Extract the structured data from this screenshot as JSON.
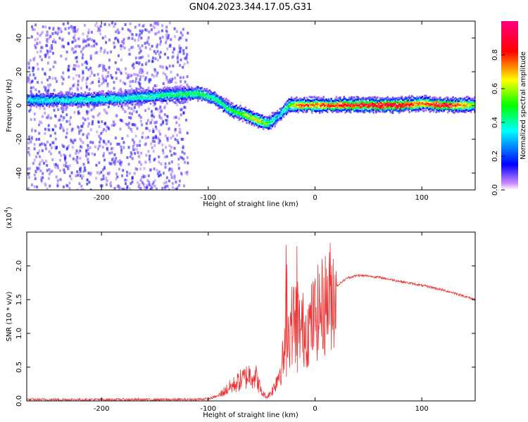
{
  "title": "GN04.2023.344.17.05.G31",
  "colors": {
    "snr_line": "#ee3333",
    "axis": "#000000"
  },
  "chart_data": [
    {
      "type": "heatmap",
      "xlabel": "Height of straight line (km)",
      "ylabel": "Frequency (Hz)",
      "xlim": [
        -270,
        150
      ],
      "ylim": [
        -50,
        50
      ],
      "x_ticks": [
        -200,
        -100,
        0,
        100
      ],
      "y_ticks": [
        -40,
        -20,
        0,
        20,
        40
      ],
      "colorbar": {
        "label": "Normalized spectral amplitude",
        "range": [
          0.0,
          1.0
        ],
        "ticks": [
          0.0,
          0.2,
          0.4,
          0.6,
          0.8
        ],
        "colormap": "rainbow (magenta-blue-cyan-green-yellow-red-pink)"
      },
      "ridge": {
        "x": [
          -270,
          -230,
          -180,
          -140,
          -110,
          -95,
          -80,
          -65,
          -55,
          -45,
          -35,
          -25,
          -15,
          0,
          40,
          80,
          100,
          120,
          150
        ],
        "frequency": [
          4,
          4,
          5,
          7,
          8,
          5,
          -2,
          -5,
          -8,
          -10,
          -6,
          1,
          1,
          1,
          1,
          1,
          2,
          1,
          1
        ],
        "amplitude": [
          0.35,
          0.4,
          0.4,
          0.45,
          0.5,
          0.45,
          0.5,
          0.6,
          0.7,
          0.55,
          0.3,
          0.55,
          0.8,
          0.8,
          0.9,
          0.95,
          0.75,
          0.95,
          0.6
        ]
      }
    },
    {
      "type": "line",
      "xlabel": "Height of straight line (km)",
      "ylabel": "SNR (10 * v/v)",
      "y_multiplier": "(x10",
      "y_multiplier_exp": "4",
      "y_multiplier_close": ")",
      "xlim": [
        -270,
        150
      ],
      "ylim": [
        0.0,
        2.5
      ],
      "x_ticks": [
        -200,
        -100,
        0,
        100
      ],
      "y_ticks": [
        "0.0",
        "0.5",
        "1.0",
        "1.5",
        "2.0"
      ],
      "series": [
        {
          "x": [
            -270,
            -230,
            -200,
            -160,
            -120,
            -100,
            -90,
            -80,
            -70,
            -60,
            -55,
            -50,
            -45,
            -40,
            -35,
            -30,
            -25,
            -20,
            -15,
            -10,
            -5,
            0,
            10,
            20,
            30,
            40,
            50,
            60,
            70,
            80,
            90,
            100,
            110,
            120,
            130,
            140,
            150
          ],
          "values": [
            0.02,
            0.02,
            0.02,
            0.02,
            0.02,
            0.03,
            0.08,
            0.2,
            0.3,
            0.4,
            0.35,
            0.12,
            0.06,
            0.15,
            0.35,
            0.6,
            1.0,
            1.2,
            1.1,
            1.05,
            1.1,
            1.25,
            1.45,
            1.7,
            1.82,
            1.86,
            1.85,
            1.83,
            1.8,
            1.77,
            1.74,
            1.71,
            1.68,
            1.64,
            1.6,
            1.55,
            1.5
          ]
        }
      ]
    }
  ]
}
